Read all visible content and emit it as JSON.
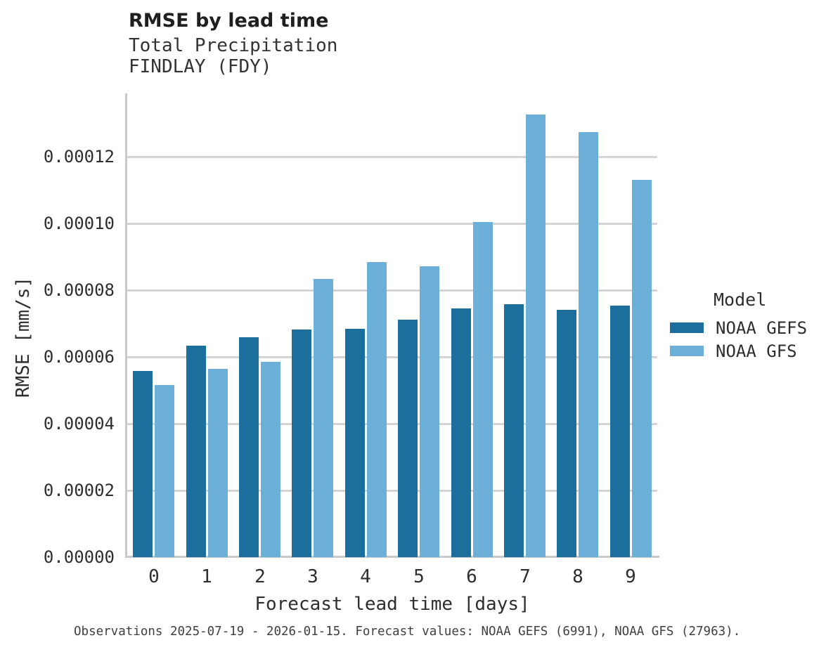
{
  "header": {
    "title": "RMSE by lead time",
    "subtitle1": "Total Precipitation",
    "subtitle2": "FINDLAY (FDY)"
  },
  "chart_data": {
    "type": "bar",
    "title": "RMSE by lead time",
    "subtitle1": "Total Precipitation",
    "subtitle2": "FINDLAY (FDY)",
    "categories": [
      "0",
      "1",
      "2",
      "3",
      "4",
      "5",
      "6",
      "7",
      "8",
      "9"
    ],
    "series": [
      {
        "name": "NOAA GEFS",
        "color": "#1c6e9d",
        "values": [
          5.59e-05,
          6.33e-05,
          6.6e-05,
          6.83e-05,
          6.85e-05,
          7.12e-05,
          7.45e-05,
          7.58e-05,
          7.41e-05,
          7.55e-05
        ]
      },
      {
        "name": "NOAA GFS",
        "color": "#6cb0d9",
        "values": [
          5.17e-05,
          5.65e-05,
          5.85e-05,
          8.35e-05,
          8.84e-05,
          8.72e-05,
          0.0001004,
          0.0001326,
          0.0001275,
          0.000113
        ]
      }
    ],
    "xlabel": "Forecast lead time [days]",
    "ylabel": "RMSE [mm/s]",
    "ylim": [
      0,
      0.000139
    ],
    "ytick_step": 2e-05,
    "yticklabels": [
      "0.00000",
      "0.00002",
      "0.00004",
      "0.00006",
      "0.00008",
      "0.00010",
      "0.00012"
    ],
    "grid": "horizontal",
    "legend_title": "Model",
    "legend_position": "right"
  },
  "caption": "Observations 2025-07-19 - 2026-01-15. Forecast values: NOAA GEFS (6991), NOAA GFS (27963)."
}
